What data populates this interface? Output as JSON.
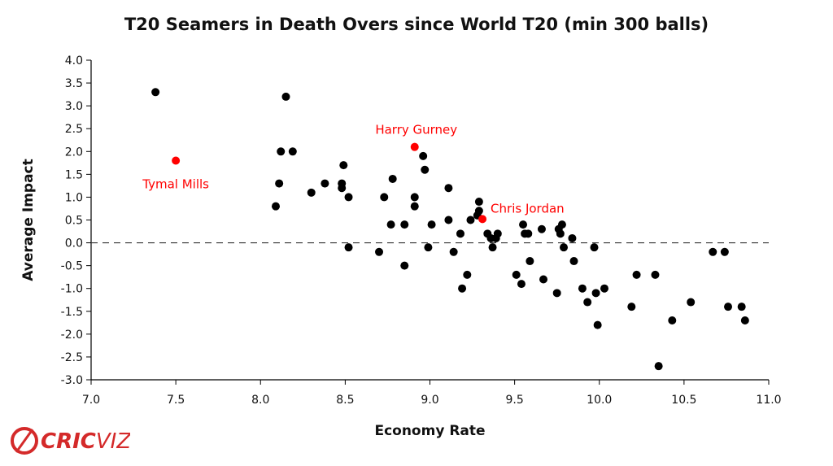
{
  "chart_data": {
    "type": "scatter",
    "title": "T20 Seamers in Death Overs since World T20 (min 300 balls)",
    "xlabel": "Economy Rate",
    "ylabel": "Average Impact",
    "xlim": [
      7.0,
      11.0
    ],
    "ylim": [
      -3.0,
      4.0
    ],
    "xticks": [
      "7.0",
      "7.5",
      "8.0",
      "8.5",
      "9.0",
      "9.5",
      "10.0",
      "10.5",
      "11.0"
    ],
    "yticks": [
      "4.0",
      "3.5",
      "3.0",
      "2.5",
      "2.0",
      "1.5",
      "1.0",
      "0.5",
      "0.0",
      "-0.5",
      "-1.0",
      "-1.5",
      "-2.0",
      "-2.5",
      "-3.0"
    ],
    "reference_line": {
      "y": 0.0,
      "style": "dashed"
    },
    "grid": false,
    "point_color": "#000000",
    "highlight_color": "#ff0000",
    "highlighted": [
      {
        "label": "Tymal Mills",
        "x": 7.5,
        "y": 1.8
      },
      {
        "label": "Harry Gurney",
        "x": 8.91,
        "y": 2.1
      },
      {
        "label": "Chris Jordan",
        "x": 9.31,
        "y": 0.52
      }
    ],
    "points": [
      {
        "x": 7.38,
        "y": 3.3
      },
      {
        "x": 8.09,
        "y": 0.8
      },
      {
        "x": 8.11,
        "y": 1.3
      },
      {
        "x": 8.12,
        "y": 2.0
      },
      {
        "x": 8.15,
        "y": 3.2
      },
      {
        "x": 8.19,
        "y": 2.0
      },
      {
        "x": 8.3,
        "y": 1.1
      },
      {
        "x": 8.38,
        "y": 1.3
      },
      {
        "x": 8.48,
        "y": 1.3
      },
      {
        "x": 8.48,
        "y": 1.2
      },
      {
        "x": 8.49,
        "y": 1.7
      },
      {
        "x": 8.52,
        "y": 1.0
      },
      {
        "x": 8.52,
        "y": -0.1
      },
      {
        "x": 8.7,
        "y": -0.2
      },
      {
        "x": 8.73,
        "y": 1.0
      },
      {
        "x": 8.77,
        "y": 0.4
      },
      {
        "x": 8.78,
        "y": 1.4
      },
      {
        "x": 8.85,
        "y": 0.4
      },
      {
        "x": 8.85,
        "y": -0.5
      },
      {
        "x": 8.91,
        "y": 1.0
      },
      {
        "x": 8.91,
        "y": 0.8
      },
      {
        "x": 8.96,
        "y": 1.9
      },
      {
        "x": 8.97,
        "y": 1.6
      },
      {
        "x": 8.99,
        "y": -0.1
      },
      {
        "x": 9.01,
        "y": 0.4
      },
      {
        "x": 9.11,
        "y": 1.2
      },
      {
        "x": 9.11,
        "y": 0.5
      },
      {
        "x": 9.14,
        "y": -0.2
      },
      {
        "x": 9.18,
        "y": 0.2
      },
      {
        "x": 9.19,
        "y": -1.0
      },
      {
        "x": 9.22,
        "y": -0.7
      },
      {
        "x": 9.24,
        "y": 0.5
      },
      {
        "x": 9.28,
        "y": 0.6
      },
      {
        "x": 9.29,
        "y": 0.7
      },
      {
        "x": 9.29,
        "y": 0.9
      },
      {
        "x": 9.34,
        "y": 0.2
      },
      {
        "x": 9.36,
        "y": 0.1
      },
      {
        "x": 9.37,
        "y": -0.1
      },
      {
        "x": 9.39,
        "y": 0.1
      },
      {
        "x": 9.4,
        "y": 0.2
      },
      {
        "x": 9.51,
        "y": -0.7
      },
      {
        "x": 9.54,
        "y": -0.9
      },
      {
        "x": 9.55,
        "y": 0.4
      },
      {
        "x": 9.56,
        "y": 0.2
      },
      {
        "x": 9.58,
        "y": 0.2
      },
      {
        "x": 9.59,
        "y": -0.4
      },
      {
        "x": 9.66,
        "y": 0.3
      },
      {
        "x": 9.67,
        "y": -0.8
      },
      {
        "x": 9.75,
        "y": -1.1
      },
      {
        "x": 9.76,
        "y": 0.3
      },
      {
        "x": 9.77,
        "y": 0.2
      },
      {
        "x": 9.78,
        "y": 0.4
      },
      {
        "x": 9.79,
        "y": -0.1
      },
      {
        "x": 9.84,
        "y": 0.1
      },
      {
        "x": 9.85,
        "y": -0.4
      },
      {
        "x": 9.9,
        "y": -1.0
      },
      {
        "x": 9.93,
        "y": -1.3
      },
      {
        "x": 9.97,
        "y": -0.1
      },
      {
        "x": 9.98,
        "y": -1.1
      },
      {
        "x": 9.99,
        "y": -1.8
      },
      {
        "x": 10.03,
        "y": -1.0
      },
      {
        "x": 10.19,
        "y": -1.4
      },
      {
        "x": 10.22,
        "y": -0.7
      },
      {
        "x": 10.33,
        "y": -0.7
      },
      {
        "x": 10.35,
        "y": -2.7
      },
      {
        "x": 10.43,
        "y": -1.7
      },
      {
        "x": 10.54,
        "y": -1.3
      },
      {
        "x": 10.67,
        "y": -0.2
      },
      {
        "x": 10.74,
        "y": -0.2
      },
      {
        "x": 10.76,
        "y": -1.4
      },
      {
        "x": 10.84,
        "y": -1.4
      },
      {
        "x": 10.86,
        "y": -1.7
      }
    ]
  },
  "branding": {
    "logo_text_part1": "CRIC",
    "logo_text_part2": "VIZ",
    "logo_color": "#d42a2a",
    "logo_icon": "cricket-ball-icon"
  }
}
